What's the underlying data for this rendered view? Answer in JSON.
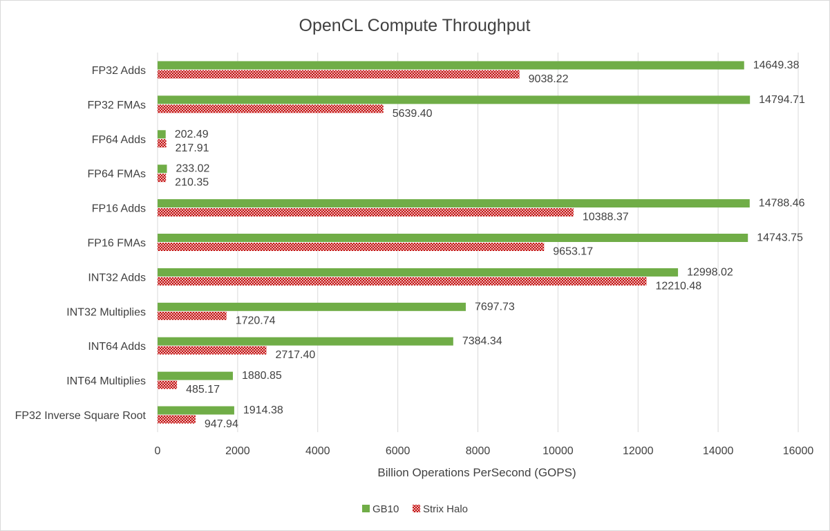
{
  "chart_data": {
    "type": "bar",
    "orientation": "horizontal",
    "title": "OpenCL Compute Throughput",
    "xlabel": "Billion Operations PerSecond (GOPS)",
    "ylabel": "",
    "xlim": [
      0,
      16000
    ],
    "xticks": [
      0,
      2000,
      4000,
      6000,
      8000,
      10000,
      12000,
      14000,
      16000
    ],
    "xtick_labels": [
      "0",
      "2000",
      "4000",
      "6000",
      "8000",
      "10000",
      "12000",
      "14000",
      "16000"
    ],
    "grid": true,
    "legend_position": "bottom",
    "categories": [
      "FP32 Adds",
      "FP32 FMAs",
      "FP64 Adds",
      "FP64 FMAs",
      "FP16 Adds",
      "FP16 FMAs",
      "INT32 Adds",
      "INT32 Multiplies",
      "INT64 Adds",
      "INT64 Multiplies",
      "FP32 Inverse Square Root"
    ],
    "series": [
      {
        "name": "GB10",
        "color": "#70ad47",
        "values": [
          14649.38,
          14794.71,
          202.49,
          233.02,
          14788.46,
          14743.75,
          12998.02,
          7697.73,
          7384.34,
          1880.85,
          1914.38
        ],
        "labels": [
          "14649.38",
          "14794.71",
          "202.49",
          "233.02",
          "14788.46",
          "14743.75",
          "12998.02",
          "7697.73",
          "7384.34",
          "1880.85",
          "1914.38"
        ]
      },
      {
        "name": "Strix Halo",
        "color": "#c00000",
        "pattern": "crosshatch",
        "values": [
          9038.22,
          5639.4,
          217.91,
          210.35,
          10388.37,
          9653.17,
          12210.48,
          1720.74,
          2717.4,
          485.17,
          947.94
        ],
        "labels": [
          "9038.22",
          "5639.40",
          "217.91",
          "210.35",
          "10388.37",
          "9653.17",
          "12210.48",
          "1720.74",
          "2717.40",
          "485.17",
          "947.94"
        ]
      }
    ]
  }
}
